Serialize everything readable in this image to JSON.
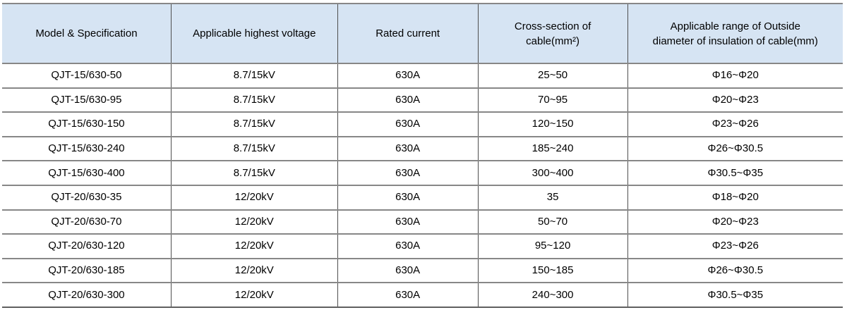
{
  "table": {
    "column_keys": [
      "model-specification",
      "highest-voltage",
      "rated-current",
      "cross-section",
      "insulation-diameter-range"
    ],
    "columns": [
      {
        "lines": [
          "Model & Specification"
        ]
      },
      {
        "lines": [
          "Applicable highest voltage"
        ]
      },
      {
        "lines": [
          "Rated current"
        ]
      },
      {
        "lines": [
          "Cross-section of",
          "cable(mm²)"
        ]
      },
      {
        "lines": [
          "Applicable range of Outside",
          "diameter of insulation of cable(mm)"
        ]
      }
    ],
    "rows": [
      [
        "QJT-15/630-50",
        "8.7/15kV",
        "630A",
        "25~50",
        "Φ16~Φ20"
      ],
      [
        "QJT-15/630-95",
        "8.7/15kV",
        "630A",
        "70~95",
        "Φ20~Φ23"
      ],
      [
        "QJT-15/630-150",
        "8.7/15kV",
        "630A",
        "120~150",
        "Φ23~Φ26"
      ],
      [
        "QJT-15/630-240",
        "8.7/15kV",
        "630A",
        "185~240",
        "Φ26~Φ30.5"
      ],
      [
        "QJT-15/630-400",
        "8.7/15kV",
        "630A",
        "300~400",
        "Φ30.5~Φ35"
      ],
      [
        "QJT-20/630-35",
        "12/20kV",
        "630A",
        "35",
        "Φ18~Φ20"
      ],
      [
        "QJT-20/630-70",
        "12/20kV",
        "630A",
        "50~70",
        "Φ20~Φ23"
      ],
      [
        "QJT-20/630-120",
        "12/20kV",
        "630A",
        "95~120",
        "Φ23~Φ26"
      ],
      [
        "QJT-20/630-185",
        "12/20kV",
        "630A",
        "150~185",
        "Φ26~Φ30.5"
      ],
      [
        "QJT-20/630-300",
        "12/20kV",
        "630A",
        "240~300",
        "Φ30.5~Φ35"
      ]
    ]
  },
  "colors": {
    "header_bg": "#d6e4f3",
    "row_line": "#878787",
    "column_line": "#4f4f4f",
    "bottom_line": "#5f5f5f",
    "text": "#000000"
  }
}
